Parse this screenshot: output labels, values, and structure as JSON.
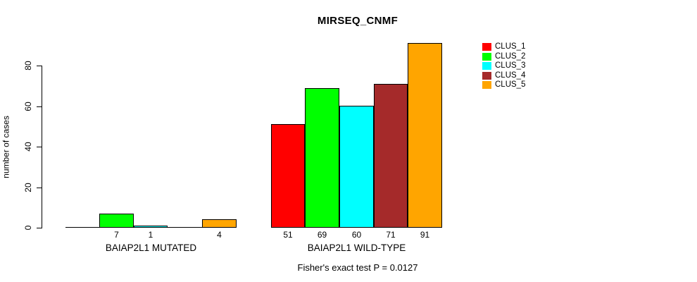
{
  "chart_data": {
    "type": "bar",
    "title": "MIRSEQ_CNMF",
    "ylabel": "number of cases",
    "xlabel": "",
    "yticks": [
      0,
      20,
      40,
      60,
      80
    ],
    "ylim": [
      0,
      91
    ],
    "grid": false,
    "legend_position": "top-right",
    "groups": [
      {
        "label": "BAIAP2L1 MUTATED",
        "values": [
          0,
          7,
          1,
          0,
          4
        ],
        "bar_labels": [
          "",
          "7",
          "1",
          "",
          "4"
        ]
      },
      {
        "label": "BAIAP2L1 WILD-TYPE",
        "values": [
          51,
          69,
          60,
          71,
          91
        ],
        "bar_labels": [
          "51",
          "69",
          "60",
          "71",
          "91"
        ]
      }
    ],
    "series": [
      {
        "name": "CLUS_1",
        "color": "#FF0000",
        "values": [
          0,
          51
        ]
      },
      {
        "name": "CLUS_2",
        "color": "#00FF00",
        "values": [
          7,
          69
        ]
      },
      {
        "name": "CLUS_3",
        "color": "#00FFFF",
        "values": [
          1,
          60
        ]
      },
      {
        "name": "CLUS_4",
        "color": "#A52A2A",
        "values": [
          0,
          71
        ]
      },
      {
        "name": "CLUS_5",
        "color": "#FFA500",
        "values": [
          4,
          91
        ]
      }
    ],
    "annotation": "Fisher's exact test P = 0.0127"
  },
  "colors": {
    "background": "#FFFFFF",
    "axis": "#000000",
    "bar_border": "#000000",
    "text": "#000000"
  }
}
